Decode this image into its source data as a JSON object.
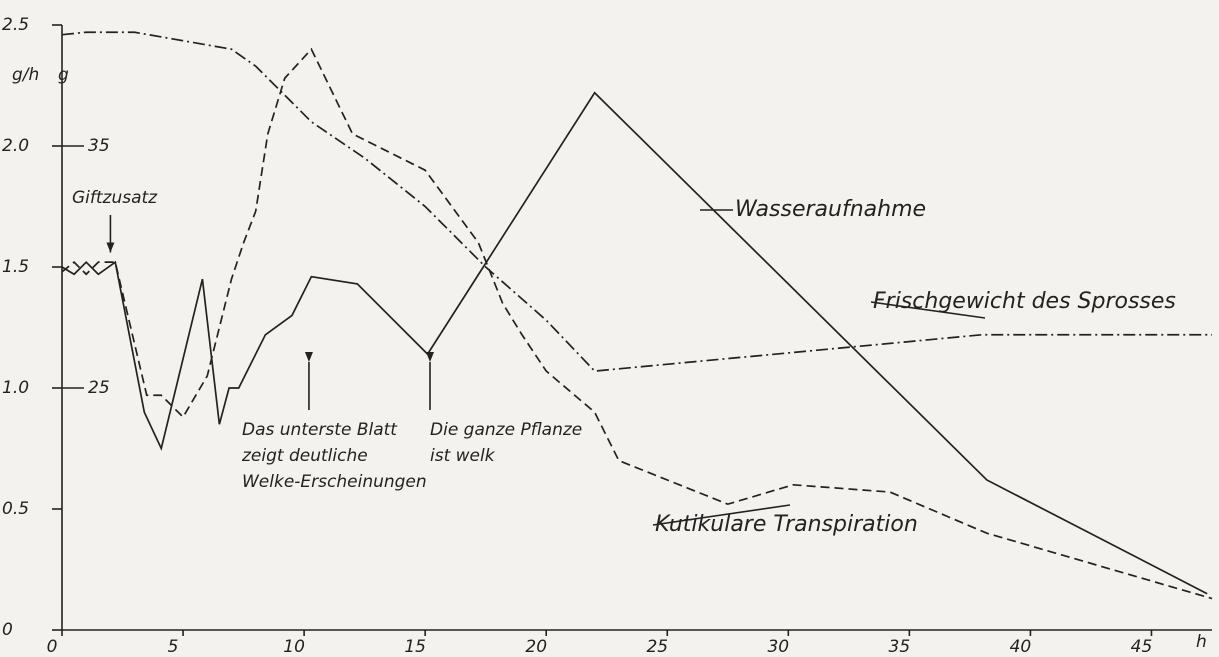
{
  "chart_data": {
    "type": "line",
    "y_label": "g/h",
    "y2_label": "g",
    "x_label": "h",
    "xlim": [
      0,
      47.5
    ],
    "xticks": [
      0,
      5,
      10,
      15,
      20,
      25,
      30,
      35,
      40,
      45
    ],
    "ylim": [
      0,
      2.5
    ],
    "yticks": [
      0,
      0.5,
      {
        "value": 1,
        "label": "1.0"
      },
      1.5,
      {
        "value": 2,
        "label": "2.0"
      },
      2.5
    ],
    "y2lim": [
      15,
      40
    ],
    "y2ticks": [
      25,
      35
    ],
    "color": "#222222",
    "series": [
      {
        "name": "Wasseraufnahme",
        "line_style": "solid",
        "x": [
          0,
          0.5,
          1,
          1.5,
          2.2,
          3.4,
          4.1,
          5.8,
          6.5,
          6.9,
          7.3,
          8.4,
          9.5,
          10.3,
          12.2,
          15.1,
          17.4,
          22,
          38.2,
          47.3
        ],
        "values": [
          1.5,
          1.47,
          1.52,
          1.47,
          1.52,
          0.9,
          0.75,
          1.45,
          0.85,
          1.0,
          1.0,
          1.22,
          1.3,
          1.46,
          1.43,
          1.14,
          1.5,
          2.22,
          0.62,
          0.15
        ]
      },
      {
        "name": "Kutikulare Transpiration",
        "line_style": "dashed",
        "x": [
          0,
          0.5,
          1,
          1.5,
          2.2,
          3.5,
          4.1,
          5.0,
          6.0,
          7.0,
          7.5,
          8.0,
          8.5,
          9.2,
          10.3,
          12.0,
          15.0,
          17.2,
          18.2,
          19.0,
          20.0,
          22.0,
          23.0,
          27.5,
          30.2,
          34.2,
          38.2,
          47.5
        ],
        "values": [
          1.48,
          1.52,
          1.47,
          1.52,
          1.52,
          0.97,
          0.97,
          0.88,
          1.05,
          1.45,
          1.6,
          1.73,
          2.05,
          2.28,
          2.4,
          2.05,
          1.9,
          1.6,
          1.35,
          1.22,
          1.07,
          0.9,
          0.7,
          0.52,
          0.6,
          0.57,
          0.4,
          0.13
        ]
      },
      {
        "name": "Frischgewicht des Sprosses",
        "line_style": "dashdot",
        "axis": "y2",
        "x": [
          0,
          1,
          3,
          7,
          8,
          10.3,
          12.5,
          15,
          17.5,
          20,
          22,
          38,
          47.5
        ],
        "values": [
          39.6,
          39.7,
          39.7,
          39,
          38.3,
          36,
          34.5,
          32.5,
          30,
          27.8,
          25.7,
          27.2,
          27.2
        ]
      }
    ],
    "annotations": [
      {
        "lines": [
          "Giftzusatz"
        ],
        "x": 2
      },
      {
        "lines": [
          "Das unterste Blatt",
          "zeigt deutliche",
          "Welke-Erscheinungen"
        ],
        "x": 10.2
      },
      {
        "lines": [
          "Die ganze Pflanze",
          "ist welk"
        ],
        "x": 15.2
      }
    ]
  }
}
